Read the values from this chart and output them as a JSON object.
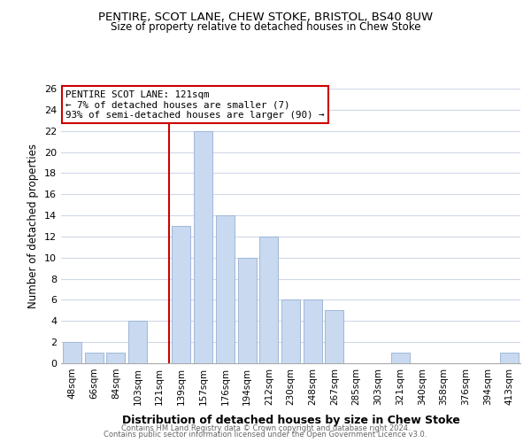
{
  "title": "PENTIRE, SCOT LANE, CHEW STOKE, BRISTOL, BS40 8UW",
  "subtitle": "Size of property relative to detached houses in Chew Stoke",
  "xlabel": "Distribution of detached houses by size in Chew Stoke",
  "ylabel": "Number of detached properties",
  "bin_labels": [
    "48sqm",
    "66sqm",
    "84sqm",
    "103sqm",
    "121sqm",
    "139sqm",
    "157sqm",
    "176sqm",
    "194sqm",
    "212sqm",
    "230sqm",
    "248sqm",
    "267sqm",
    "285sqm",
    "303sqm",
    "321sqm",
    "340sqm",
    "358sqm",
    "376sqm",
    "394sqm",
    "413sqm"
  ],
  "bin_values": [
    2,
    1,
    1,
    4,
    0,
    13,
    22,
    14,
    10,
    12,
    6,
    6,
    5,
    0,
    0,
    1,
    0,
    0,
    0,
    0,
    1
  ],
  "bar_color": "#c8d9f0",
  "bar_edge_color": "#a0b8d8",
  "vline_x_index": 4,
  "vline_color": "#cc0000",
  "annotation_line1": "PENTIRE SCOT LANE: 121sqm",
  "annotation_line2": "← 7% of detached houses are smaller (7)",
  "annotation_line3": "93% of semi-detached houses are larger (90) →",
  "annotation_box_edge_color": "#cc0000",
  "ylim": [
    0,
    26
  ],
  "yticks": [
    0,
    2,
    4,
    6,
    8,
    10,
    12,
    14,
    16,
    18,
    20,
    22,
    24,
    26
  ],
  "footer_line1": "Contains HM Land Registry data © Crown copyright and database right 2024.",
  "footer_line2": "Contains public sector information licensed under the Open Government Licence v3.0.",
  "background_color": "#ffffff",
  "grid_color": "#d0d8e8"
}
